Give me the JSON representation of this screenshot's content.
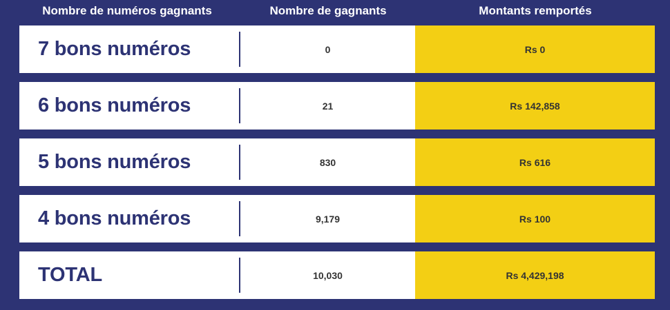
{
  "headers": {
    "col1": "Nombre de numéros gagnants",
    "col2": "Nombre de gagnants",
    "col3": "Montants remportés"
  },
  "rows": [
    {
      "label": "7 bons numéros",
      "winners": "0",
      "amount": "Rs 0"
    },
    {
      "label": "6 bons numéros",
      "winners": "21",
      "amount": "Rs 142,858"
    },
    {
      "label": "5 bons numéros",
      "winners": "830",
      "amount": "Rs 616"
    },
    {
      "label": "4 bons numéros",
      "winners": "9,179",
      "amount": "Rs 100"
    },
    {
      "label": "TOTAL",
      "winners": "10,030",
      "amount": "Rs 4,429,198"
    }
  ],
  "colors": {
    "background": "#2d3374",
    "row": "#ffffff",
    "highlight": "#f3cf14",
    "label_text": "#2d3374"
  }
}
